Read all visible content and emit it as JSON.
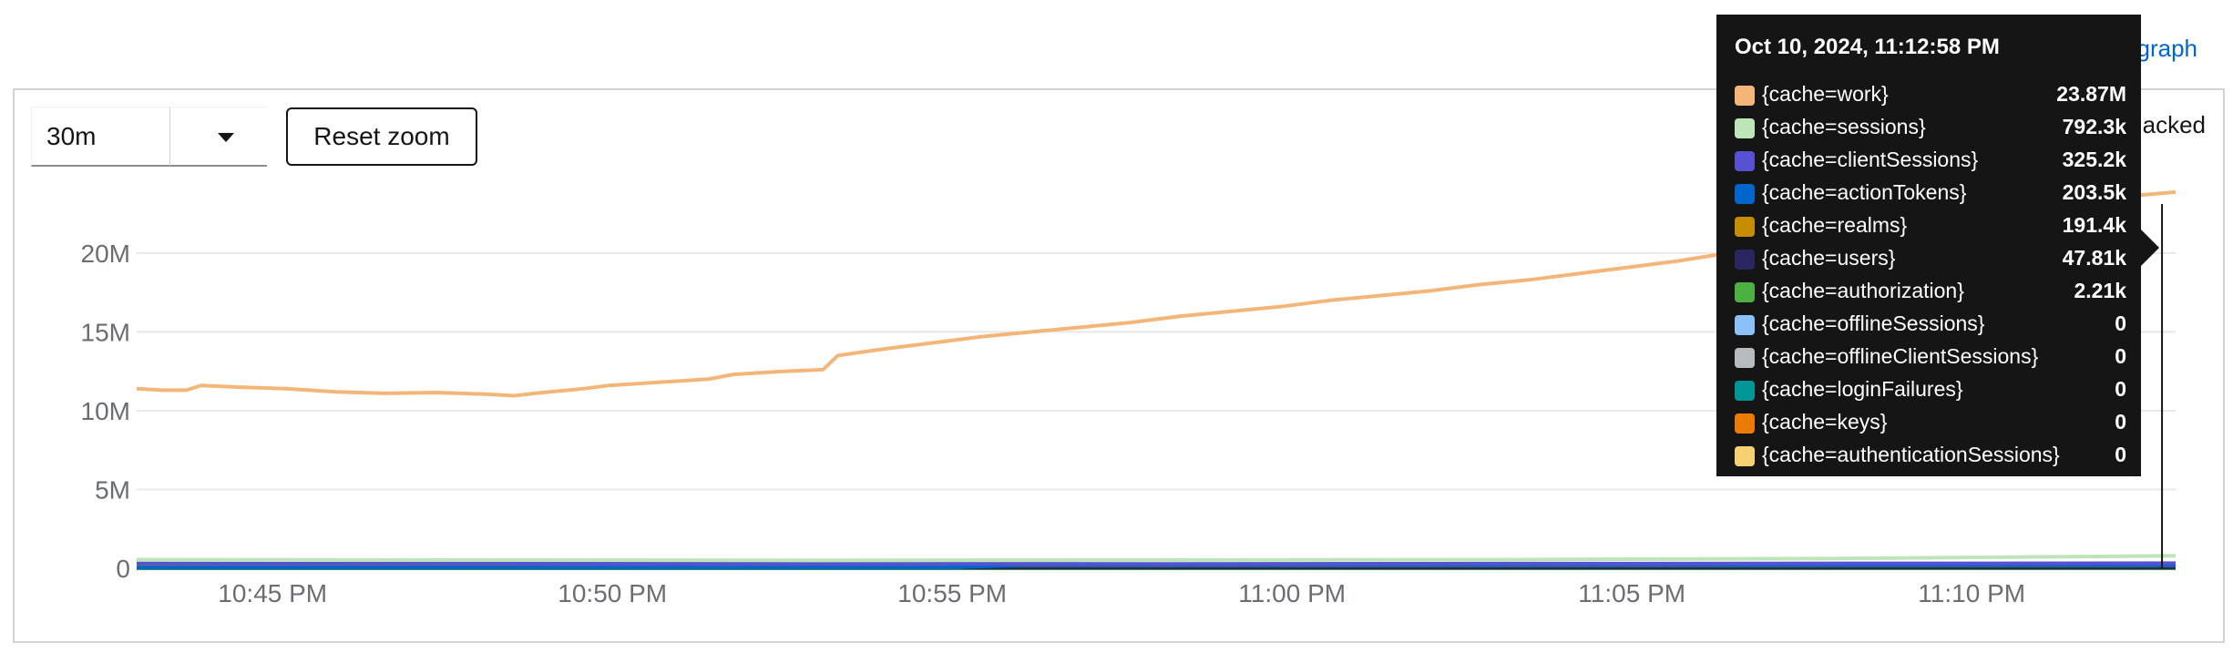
{
  "header": {
    "link_text": "graph",
    "stacked_text": "acked"
  },
  "controls": {
    "range_value": "30m",
    "reset_zoom_label": "Reset zoom"
  },
  "colors": {
    "grid": "#e8e8e8",
    "axis_text": "#6a6e73",
    "hover_line": "#151515"
  },
  "chart_data": {
    "type": "line",
    "title": "",
    "xlabel": "",
    "ylabel": "",
    "x_ticks": [
      "10:45 PM",
      "10:50 PM",
      "10:55 PM",
      "11:00 PM",
      "11:05 PM",
      "11:10 PM"
    ],
    "x_tick_minutes": [
      2,
      7,
      12,
      17,
      22,
      27
    ],
    "xlim_minutes": [
      0,
      30
    ],
    "x_origin": "10:43 PM",
    "y_ticks": [
      {
        "value": 0,
        "label": "0"
      },
      {
        "value": 5000000,
        "label": "5M"
      },
      {
        "value": 10000000,
        "label": "10M"
      },
      {
        "value": 15000000,
        "label": "15M"
      },
      {
        "value": 20000000,
        "label": "20M"
      }
    ],
    "ylim": [
      0,
      24500000
    ],
    "grid": true,
    "hover_minute": 29.8,
    "series": [
      {
        "name": "{cache=work}",
        "color": "#f4b678",
        "points": [
          [
            0,
            11400000.0
          ],
          [
            0.5,
            11300000.0
          ],
          [
            1,
            11300000.0
          ],
          [
            1.3,
            11600000.0
          ],
          [
            2,
            11500000.0
          ],
          [
            3,
            11400000.0
          ],
          [
            4,
            11200000.0
          ],
          [
            5,
            11100000.0
          ],
          [
            6,
            11150000.0
          ],
          [
            7,
            11050000.0
          ],
          [
            7.6,
            10950000.0
          ],
          [
            8,
            11100000.0
          ],
          [
            9,
            11400000.0
          ],
          [
            9.5,
            11600000.0
          ],
          [
            10.5,
            11800000.0
          ],
          [
            11.5,
            12000000.0
          ],
          [
            12,
            12300000.0
          ],
          [
            13,
            12500000.0
          ],
          [
            13.8,
            12600000.0
          ],
          [
            14.1,
            13500000.0
          ],
          [
            15,
            13900000.0
          ],
          [
            16,
            14300000.0
          ],
          [
            17,
            14700000.0
          ],
          [
            18,
            15000000.0
          ],
          [
            19,
            15300000.0
          ],
          [
            20,
            15600000.0
          ],
          [
            21,
            16000000.0
          ],
          [
            22,
            16300000.0
          ],
          [
            23,
            16600000.0
          ],
          [
            24,
            17000000.0
          ],
          [
            25,
            17300000.0
          ],
          [
            26,
            17600000.0
          ],
          [
            27,
            18000000.0
          ],
          [
            28,
            18300000.0
          ],
          [
            29,
            18700000.0
          ],
          [
            30,
            19100000.0
          ],
          [
            31,
            19500000.0
          ],
          [
            32,
            20000000.0
          ],
          [
            33,
            20800000.0
          ],
          [
            34,
            21600000.0
          ],
          [
            35,
            22000000.0
          ],
          [
            36,
            22100000.0
          ],
          [
            36.5,
            22000000.0
          ],
          [
            37,
            22300000.0
          ],
          [
            38,
            22500000.0
          ],
          [
            39,
            22800000.0
          ],
          [
            39.5,
            23300000.0
          ],
          [
            40,
            23600000.0
          ],
          [
            41,
            23870000.0
          ]
        ],
        "x_scale": 0.7317
      },
      {
        "name": "{cache=sessions}",
        "color": "#bde5b8",
        "points": [
          [
            0,
            550000.0
          ],
          [
            10,
            500000.0
          ],
          [
            20,
            550000.0
          ],
          [
            25,
            620000.0
          ],
          [
            30,
            792300.0
          ]
        ]
      },
      {
        "name": "{cache=clientSessions}",
        "color": "#5752d1",
        "points": [
          [
            0,
            300000.0
          ],
          [
            15,
            280000.0
          ],
          [
            30,
            325200.0
          ]
        ]
      },
      {
        "name": "{cache=actionTokens}",
        "color": "#0066cc",
        "points": [
          [
            0,
            50000.0
          ],
          [
            12,
            50000.0
          ],
          [
            13,
            200000.0
          ],
          [
            30,
            203500.0
          ]
        ]
      },
      {
        "name": "{cache=realms}",
        "color": "#c58c00",
        "points": [
          [
            0,
            190000.0
          ],
          [
            30,
            191400.0
          ]
        ]
      },
      {
        "name": "{cache=users}",
        "color": "#2a265f",
        "points": [
          [
            0,
            40000.0
          ],
          [
            30,
            47810.0
          ]
        ]
      },
      {
        "name": "{cache=authorization}",
        "color": "#4cb140",
        "points": [
          [
            0,
            2000.0
          ],
          [
            30,
            2210.0
          ]
        ]
      },
      {
        "name": "{cache=offlineSessions}",
        "color": "#8bc1f7",
        "points": [
          [
            0,
            0
          ],
          [
            30,
            0
          ]
        ]
      },
      {
        "name": "{cache=offlineClientSessions}",
        "color": "#b8bbbe",
        "points": [
          [
            0,
            0
          ],
          [
            30,
            0
          ]
        ]
      },
      {
        "name": "{cache=loginFailures}",
        "color": "#009596",
        "points": [
          [
            0,
            0
          ],
          [
            30,
            0
          ]
        ]
      },
      {
        "name": "{cache=keys}",
        "color": "#ec7a08",
        "points": [
          [
            0,
            0
          ],
          [
            30,
            0
          ]
        ]
      },
      {
        "name": "{cache=authenticationSessions}",
        "color": "#f6d173",
        "points": [
          [
            0,
            0
          ],
          [
            30,
            0
          ]
        ]
      }
    ]
  },
  "tooltip": {
    "title": "Oct 10, 2024, 11:12:58 PM",
    "rows": [
      {
        "name": "{cache=work}",
        "value": "23.87M",
        "color": "#f4b678"
      },
      {
        "name": "{cache=sessions}",
        "value": "792.3k",
        "color": "#bde5b8"
      },
      {
        "name": "{cache=clientSessions}",
        "value": "325.2k",
        "color": "#5752d1"
      },
      {
        "name": "{cache=actionTokens}",
        "value": "203.5k",
        "color": "#0066cc"
      },
      {
        "name": "{cache=realms}",
        "value": "191.4k",
        "color": "#c58c00"
      },
      {
        "name": "{cache=users}",
        "value": "47.81k",
        "color": "#2a265f"
      },
      {
        "name": "{cache=authorization}",
        "value": "2.21k",
        "color": "#4cb140"
      },
      {
        "name": "{cache=offlineSessions}",
        "value": "0",
        "color": "#8bc1f7"
      },
      {
        "name": "{cache=offlineClientSessions}",
        "value": "0",
        "color": "#b8bbbe"
      },
      {
        "name": "{cache=loginFailures}",
        "value": "0",
        "color": "#009596"
      },
      {
        "name": "{cache=keys}",
        "value": "0",
        "color": "#ec7a08"
      },
      {
        "name": "{cache=authenticationSessions}",
        "value": "0",
        "color": "#f6d173"
      }
    ]
  }
}
